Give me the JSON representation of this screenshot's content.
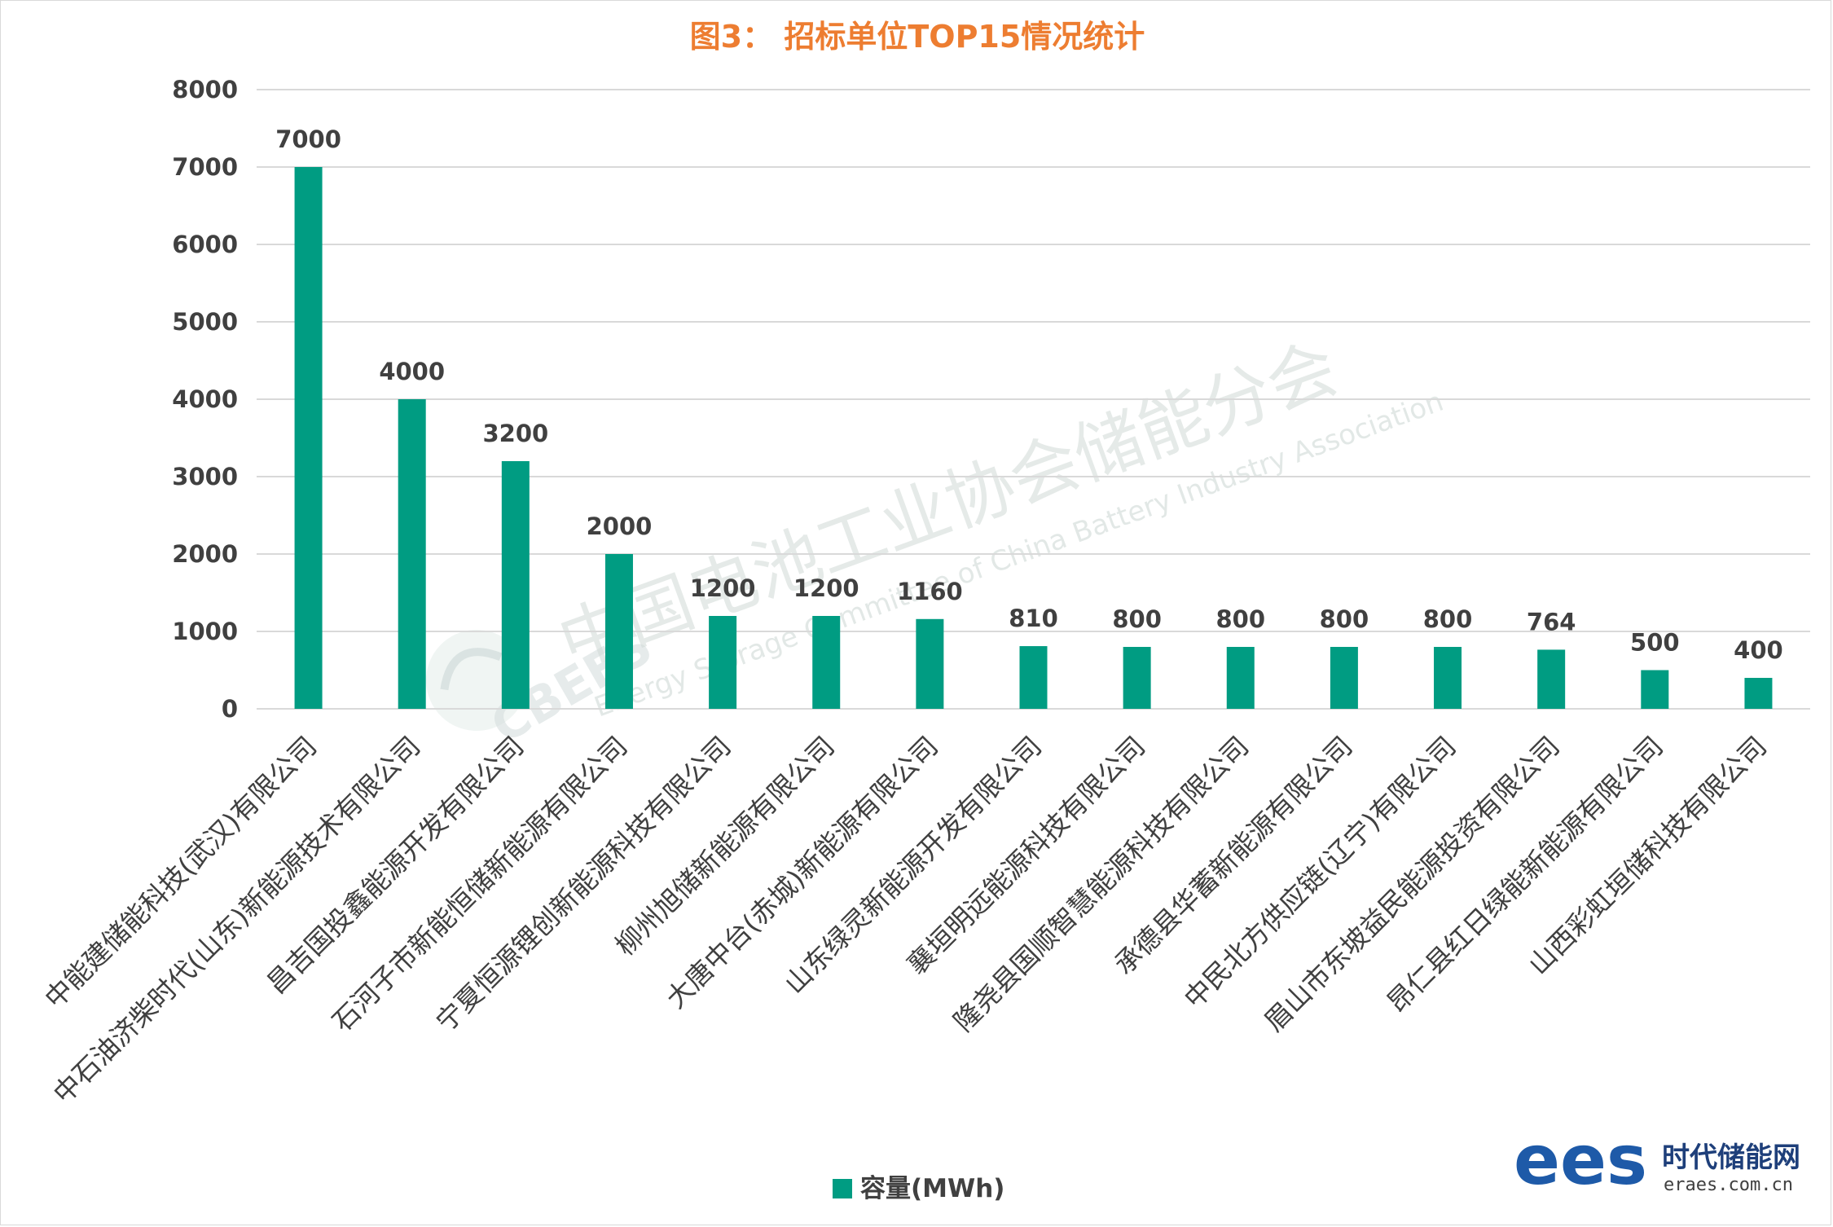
{
  "chart_data": {
    "type": "bar",
    "title": "图3：  招标单位TOP15情况统计",
    "categories": [
      "中能建储能科技(武汉)有限公司",
      "中石油济柴时代(山东)新能源技术有限公司",
      "昌吉国投鑫能源开发有限公司",
      "石河子市新能恒储新能源有限公司",
      "宁夏恒源锂创新能源科技有限公司",
      "柳州旭储新能源有限公司",
      "大唐中台(赤城)新能源有限公司",
      "山东绿灵新能源开发有限公司",
      "襄垣明远能源科技有限公司",
      "隆尧县国顺智慧能源科技有限公司",
      "承德县华蓄新能源有限公司",
      "中民北方供应链(辽宁)有限公司",
      "眉山市东坡益民能源投资有限公司",
      "昂仁县红日绿能新能源有限公司",
      "山西彩虹垣储科技有限公司"
    ],
    "series": [
      {
        "name": "容量(MWh)",
        "values": [
          7000,
          4000,
          3200,
          2000,
          1200,
          1200,
          1160,
          810,
          800,
          800,
          800,
          800,
          764,
          500,
          400
        ],
        "color": "#009c82"
      }
    ],
    "data_labels": [
      "7000",
      "4000",
      "3200",
      "2000",
      "1200",
      "1200",
      "1160",
      "810",
      "800",
      "800",
      "800",
      "800",
      "764",
      "500",
      "400"
    ],
    "yticks": [
      "0",
      "1000",
      "2000",
      "3000",
      "4000",
      "5000",
      "6000",
      "7000",
      "8000"
    ],
    "ylim": [
      0,
      8000
    ],
    "grid": true,
    "legend_position": "bottom",
    "colors": {
      "bar": "#009c82",
      "title": "#ed7d31",
      "grid": "#d9d9d9",
      "text": "#404040"
    }
  },
  "watermark": {
    "cn": "中国电池工业协会储能分会",
    "en": "Energy Storage Committee of China Battery Industry Association",
    "logo_text": "CBEES"
  },
  "logo": {
    "mark": "ees",
    "name": "时代储能网",
    "url": "eraes.com.cn"
  }
}
